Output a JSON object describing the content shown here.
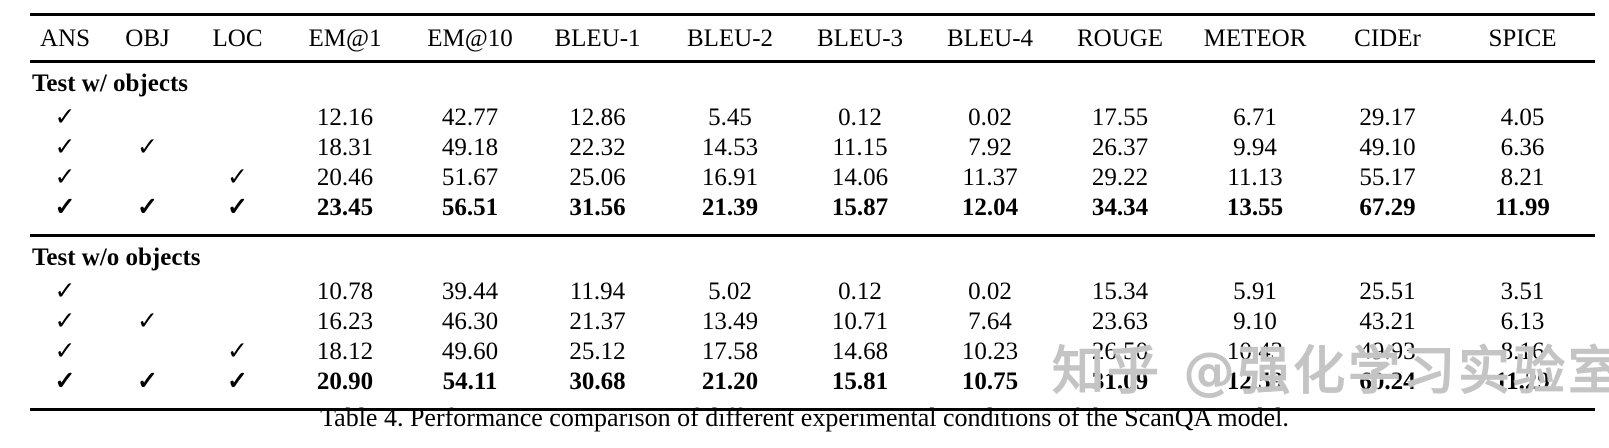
{
  "table": {
    "columns": [
      "ANS",
      "OBJ",
      "LOC",
      "EM@1",
      "EM@10",
      "BLEU-1",
      "BLEU-2",
      "BLEU-3",
      "BLEU-4",
      "ROUGE",
      "METEOR",
      "CIDEr",
      "SPICE"
    ],
    "check_glyph": "✓",
    "sections": [
      {
        "label": "Test w/ objects",
        "rows": [
          {
            "checks": [
              true,
              false,
              false
            ],
            "values": [
              "12.16",
              "42.77",
              "12.86",
              "5.45",
              "0.12",
              "0.02",
              "17.55",
              "6.71",
              "29.17",
              "4.05"
            ],
            "bold": false
          },
          {
            "checks": [
              true,
              true,
              false
            ],
            "values": [
              "18.31",
              "49.18",
              "22.32",
              "14.53",
              "11.15",
              "7.92",
              "26.37",
              "9.94",
              "49.10",
              "6.36"
            ],
            "bold": false
          },
          {
            "checks": [
              true,
              false,
              true
            ],
            "values": [
              "20.46",
              "51.67",
              "25.06",
              "16.91",
              "14.06",
              "11.37",
              "29.22",
              "11.13",
              "55.17",
              "8.21"
            ],
            "bold": false
          },
          {
            "checks": [
              true,
              true,
              true
            ],
            "values": [
              "23.45",
              "56.51",
              "31.56",
              "21.39",
              "15.87",
              "12.04",
              "34.34",
              "13.55",
              "67.29",
              "11.99"
            ],
            "bold": true
          }
        ]
      },
      {
        "label": "Test w/o objects",
        "rows": [
          {
            "checks": [
              true,
              false,
              false
            ],
            "values": [
              "10.78",
              "39.44",
              "11.94",
              "5.02",
              "0.12",
              "0.02",
              "15.34",
              "5.91",
              "25.51",
              "3.51"
            ],
            "bold": false
          },
          {
            "checks": [
              true,
              true,
              false
            ],
            "values": [
              "16.23",
              "46.30",
              "21.37",
              "13.49",
              "10.71",
              "7.64",
              "23.63",
              "9.10",
              "43.21",
              "6.13"
            ],
            "bold": false
          },
          {
            "checks": [
              true,
              false,
              true
            ],
            "values": [
              "18.12",
              "49.60",
              "25.12",
              "17.58",
              "14.68",
              "10.23",
              "26.50",
              "10.43",
              "49.93",
              "8.16"
            ],
            "bold": false
          },
          {
            "checks": [
              true,
              true,
              true
            ],
            "values": [
              "20.90",
              "54.11",
              "30.68",
              "21.20",
              "15.81",
              "10.75",
              "31.09",
              "12.59",
              "60.24",
              "11.29"
            ],
            "bold": true
          }
        ]
      }
    ]
  },
  "caption": "Table 4. Performance comparison of different experimental conditions of the ScanQA model.",
  "watermark": {
    "text": "知乎 @强化学习实验室"
  },
  "colors": {
    "text": "#000000",
    "background": "#ffffff",
    "rule": "#000000",
    "watermark": "#bcbcbc"
  }
}
